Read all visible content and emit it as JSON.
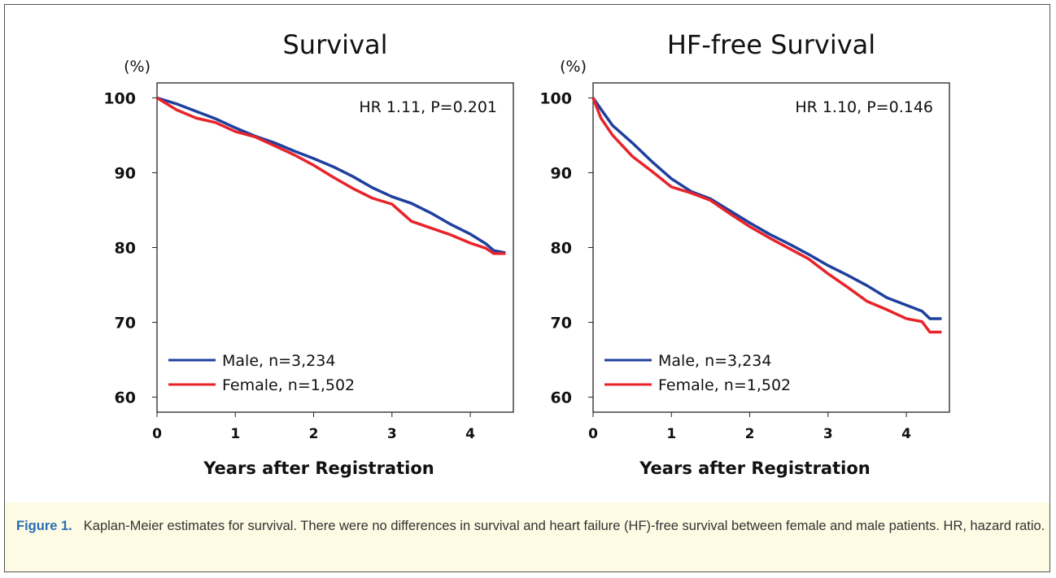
{
  "chart_data": [
    {
      "type": "line",
      "title": "Survival",
      "y_label": "(%)",
      "x_label": "Years after Registration",
      "annotation": "HR 1.11, P=0.201",
      "x": [
        0,
        0.25,
        0.5,
        0.75,
        1,
        1.25,
        1.5,
        1.75,
        2,
        2.25,
        2.5,
        2.75,
        3,
        3.25,
        3.5,
        3.75,
        4,
        4.2,
        4.3,
        4.45
      ],
      "series": [
        {
          "name": "Male, n=3,234",
          "color": "#1f3f9e",
          "values": [
            100,
            99.2,
            98.2,
            97.2,
            96,
            94.9,
            94,
            92.9,
            91.9,
            90.8,
            89.5,
            88,
            86.8,
            85.9,
            84.6,
            83.1,
            81.8,
            80.5,
            79.6,
            79.3
          ]
        },
        {
          "name": "Female, n=1,502",
          "color": "#e8232a",
          "values": [
            100,
            98.4,
            97.3,
            96.7,
            95.5,
            94.8,
            93.6,
            92.4,
            91,
            89.4,
            87.9,
            86.6,
            85.8,
            83.5,
            82.6,
            81.7,
            80.6,
            79.9,
            79.2,
            79.2
          ]
        }
      ],
      "xlim": [
        0,
        4.55
      ],
      "xticks": [
        0,
        1,
        2,
        3,
        4
      ],
      "ylim": [
        58,
        102
      ],
      "yticks": [
        60,
        70,
        80,
        90,
        100
      ],
      "legend": "lower left"
    },
    {
      "type": "line",
      "title": "HF-free Survival",
      "y_label": "(%)",
      "x_label": "Years after Registration",
      "annotation": "HR 1.10, P=0.146",
      "x": [
        0,
        0.1,
        0.25,
        0.5,
        0.75,
        1,
        1.25,
        1.5,
        1.75,
        2,
        2.25,
        2.5,
        2.75,
        3,
        3.25,
        3.5,
        3.75,
        4,
        4.2,
        4.3,
        4.45
      ],
      "series": [
        {
          "name": "Male, n=3,234",
          "color": "#1f3f9e",
          "values": [
            100,
            98.5,
            96.3,
            94,
            91.5,
            89.2,
            87.5,
            86.5,
            84.9,
            83.3,
            81.8,
            80.5,
            79.1,
            77.6,
            76.3,
            74.9,
            73.3,
            72.3,
            71.5,
            70.5,
            70.5
          ]
        },
        {
          "name": "Female, n=1,502",
          "color": "#e8232a",
          "values": [
            100,
            97.3,
            95,
            92.2,
            90.2,
            88.1,
            87.3,
            86.3,
            84.5,
            82.8,
            81.3,
            79.9,
            78.5,
            76.5,
            74.7,
            72.8,
            71.7,
            70.5,
            70.1,
            68.7,
            68.7
          ]
        }
      ],
      "xlim": [
        0,
        4.55
      ],
      "xticks": [
        0,
        1,
        2,
        3,
        4
      ],
      "ylim": [
        58,
        102
      ],
      "yticks": [
        60,
        70,
        80,
        90,
        100
      ],
      "legend": "lower left"
    }
  ],
  "caption": {
    "label": "Figure 1.",
    "text": "Kaplan-Meier estimates for survival. There were no differences in survival and heart failure (HF)-free survival between female and male patients. HR, hazard ratio."
  }
}
